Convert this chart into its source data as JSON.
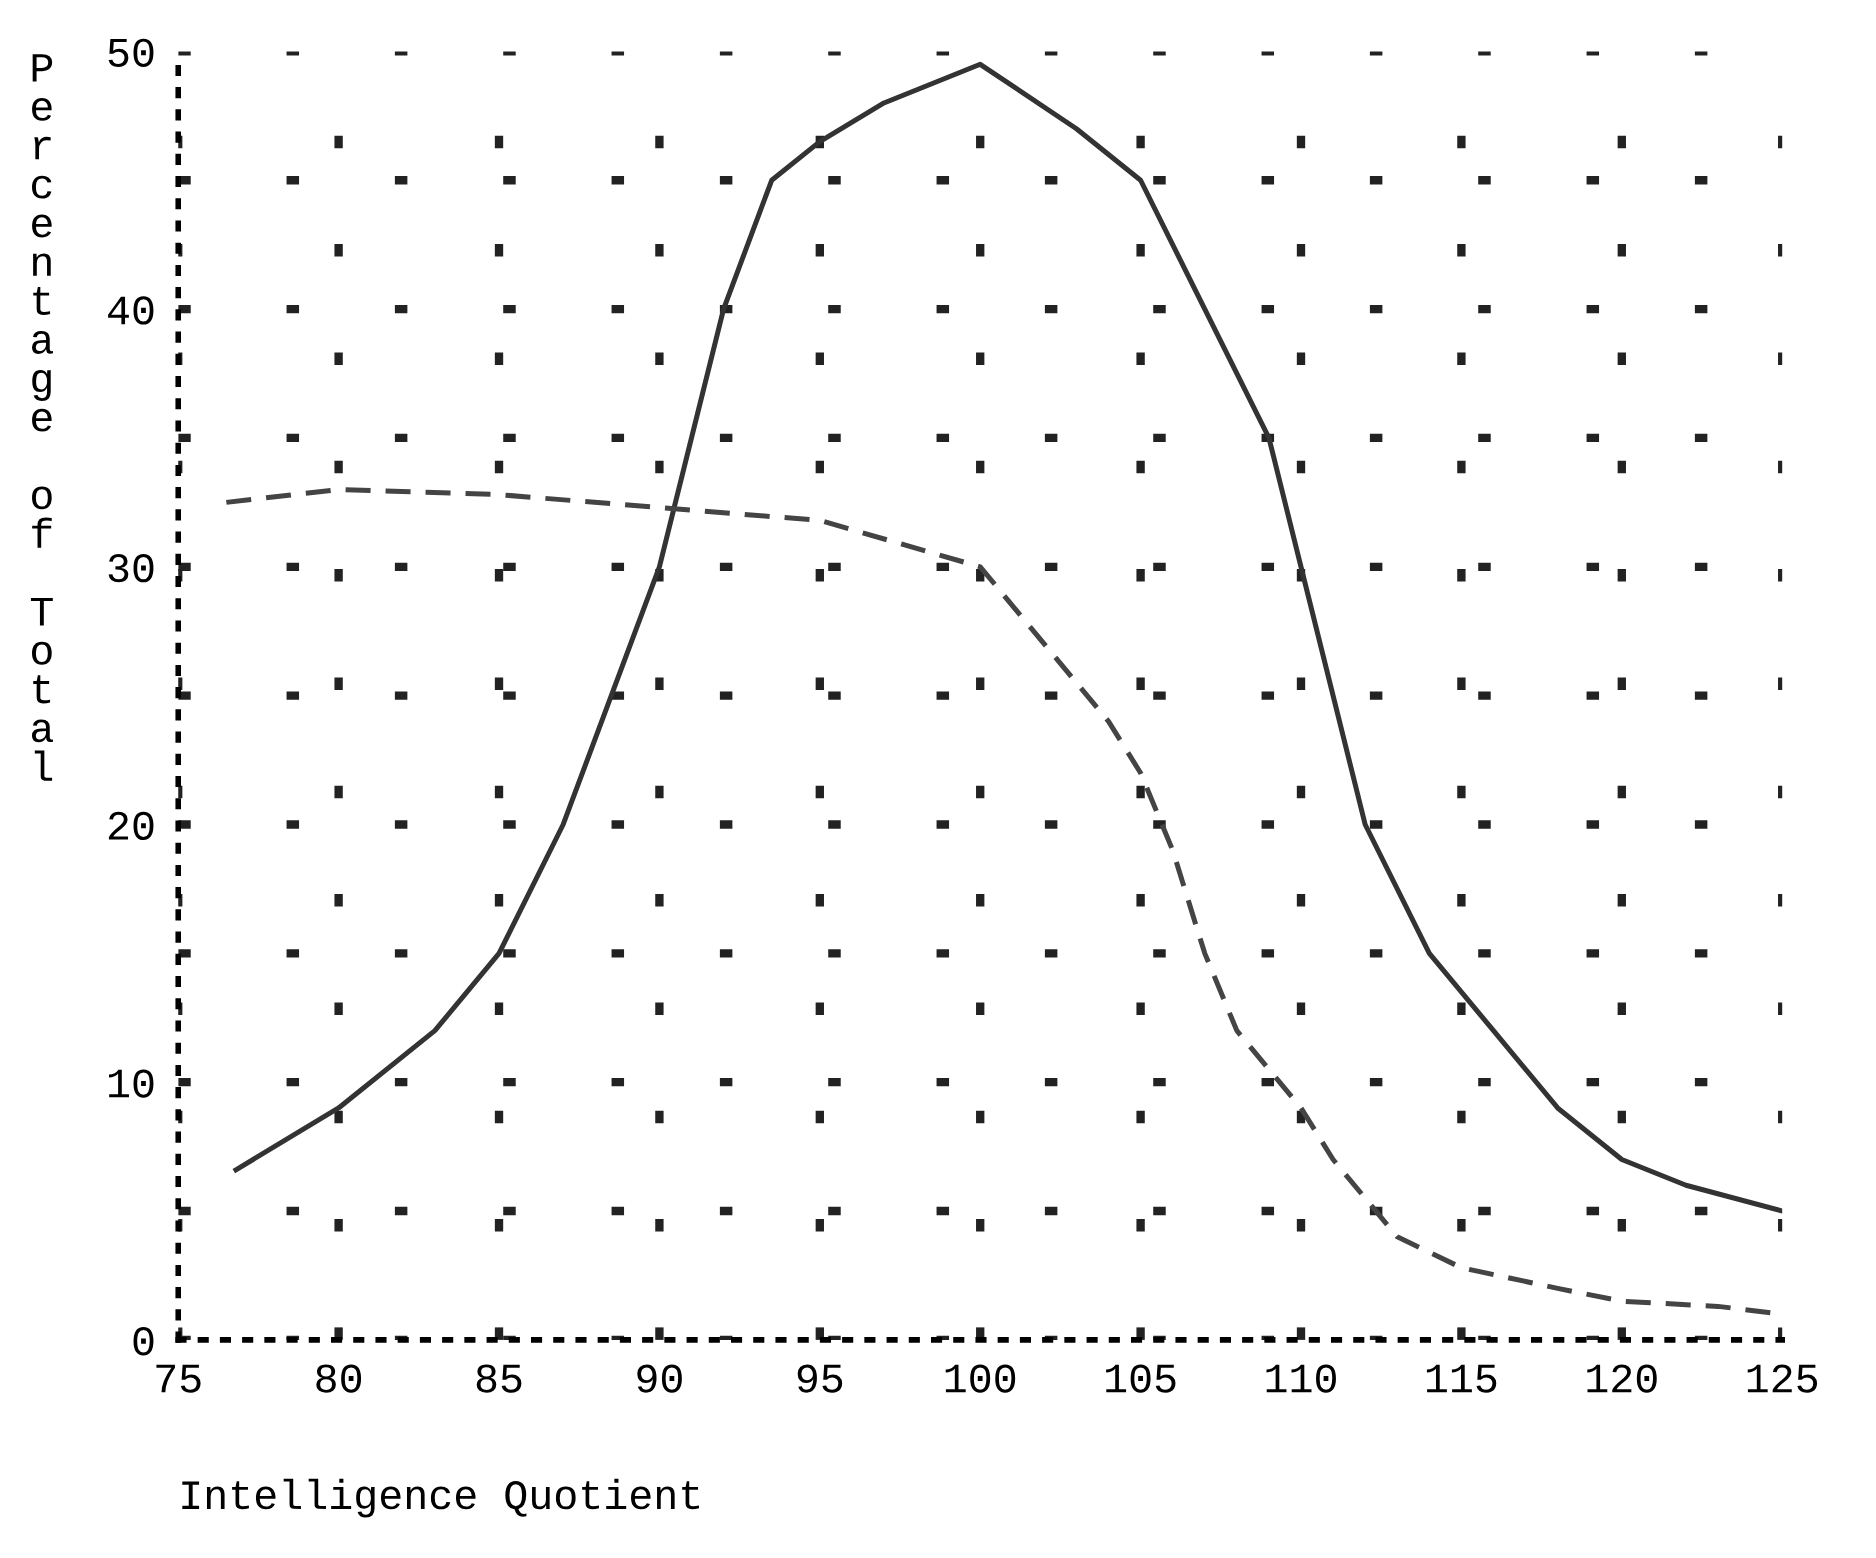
{
  "chart_data": {
    "type": "line",
    "xlabel": "Intelligence Quotient",
    "ylabel": "Percentage of Total",
    "xlim": [
      75,
      125
    ],
    "ylim": [
      0,
      50
    ],
    "xticks": [
      75,
      80,
      85,
      90,
      95,
      100,
      105,
      110,
      115,
      120,
      125
    ],
    "yticks": [
      0,
      {
        "value": 5,
        "label": null
      },
      10,
      {
        "value": 15,
        "label": null
      },
      20,
      {
        "value": 25,
        "label": null
      },
      30,
      {
        "value": 35,
        "label": null
      },
      40,
      {
        "value": 45,
        "label": null
      },
      50
    ],
    "grid": true,
    "legend": false,
    "marker": "none",
    "series": [
      {
        "color": "#333333",
        "line_style": "solid",
        "x": [
          76.8,
          80,
          83,
          85,
          87,
          88.5,
          90,
          91,
          92,
          93.5,
          95,
          97,
          100,
          103,
          105,
          107,
          109,
          110,
          111,
          112,
          114,
          116,
          118,
          120,
          122,
          125
        ],
        "values": [
          6.6,
          9,
          12,
          15,
          20,
          25,
          30,
          35,
          40,
          45,
          46.5,
          48,
          49.5,
          47,
          45,
          40,
          35,
          30,
          25,
          20,
          15,
          12,
          9,
          7,
          6,
          5
        ]
      },
      {
        "color": "#444444",
        "line_style": "dashed",
        "x": [
          76.5,
          80,
          85,
          90,
          95,
          100,
          102,
          104,
          105,
          106,
          107,
          108,
          110,
          111,
          112,
          113,
          115,
          118,
          120,
          123,
          125
        ],
        "values": [
          32.5,
          33,
          32.8,
          32.3,
          31.8,
          30,
          27,
          24,
          22,
          19,
          15,
          12,
          9,
          7,
          5.5,
          4,
          2.8,
          2,
          1.5,
          1.3,
          1
        ]
      }
    ]
  }
}
